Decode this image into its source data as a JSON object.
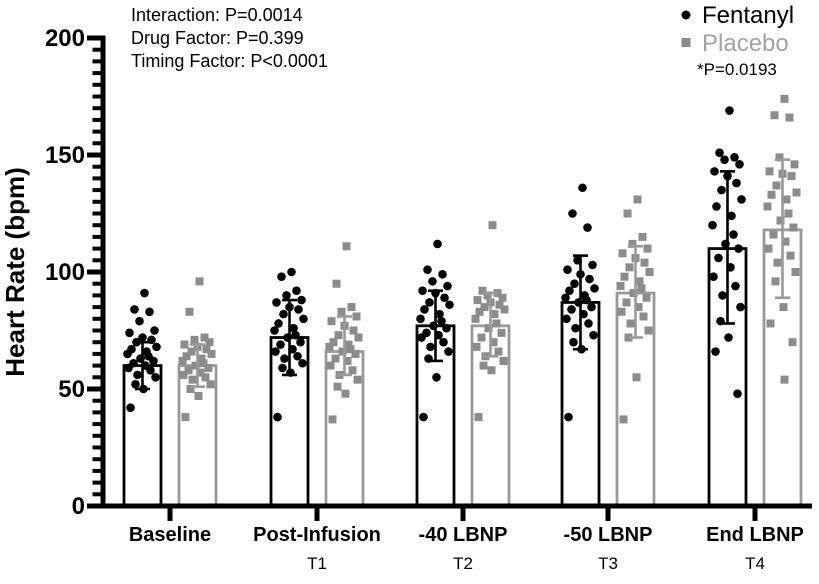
{
  "chart_data": {
    "type": "bar",
    "subtype": "grouped-bars-with-scatter-overlay-and-sd-error-bars",
    "title": "",
    "xlabel": "",
    "ylabel": "Heart Rate (bpm)",
    "ylim": [
      0,
      200
    ],
    "yticks": [
      0,
      50,
      100,
      150,
      200
    ],
    "ytick_minor_step": 5,
    "grid": false,
    "legend_position": "top-right",
    "categories": [
      "Baseline",
      "Post-Infusion",
      "-40 LBNP",
      "-50 LBNP",
      "End LBNP"
    ],
    "timing_labels": [
      "",
      "T1",
      "T2",
      "T3",
      "T4"
    ],
    "stats_annotations": [
      "Interaction: P=0.0014",
      "Drug Factor: P=0.399",
      "Timing Factor: P<0.0001"
    ],
    "significance_note": "*P=0.0193",
    "colors": {
      "fentanyl": "#000000",
      "placebo_marker": "#8c8c8c",
      "placebo_line": "#9a9a9a",
      "placebo_text": "#a3a3a3",
      "background": "#ffffff"
    },
    "legend": [
      {
        "name": "Fentanyl",
        "marker": "circle",
        "color": "#000000"
      },
      {
        "name": "Placebo",
        "marker": "square",
        "color": "#8c8c8c"
      }
    ],
    "series": [
      {
        "name": "Fentanyl",
        "marker": "circle",
        "color": "#000000",
        "line_color": "#000000",
        "bar_means": [
          60,
          72,
          77,
          87,
          110
        ],
        "sd_high": [
          70,
          88,
          92,
          107,
          143
        ],
        "sd_low": [
          50,
          56,
          62,
          67,
          78
        ],
        "points": [
          [
            91,
            84,
            83,
            79,
            75,
            74,
            72,
            71,
            70,
            68,
            67,
            66,
            65,
            64,
            63,
            62,
            61,
            60,
            59,
            58,
            56,
            55,
            52,
            50,
            42
          ],
          [
            100,
            98,
            92,
            90,
            88,
            87,
            85,
            84,
            82,
            80,
            78,
            76,
            75,
            73,
            72,
            70,
            69,
            67,
            66,
            64,
            63,
            61,
            59,
            57,
            38
          ],
          [
            112,
            101,
            99,
            96,
            94,
            92,
            91,
            89,
            87,
            86,
            84,
            82,
            80,
            79,
            77,
            76,
            74,
            73,
            72,
            70,
            68,
            66,
            63,
            55,
            38
          ],
          [
            136,
            125,
            119,
            105,
            103,
            101,
            99,
            97,
            95,
            93,
            92,
            90,
            89,
            88,
            87,
            85,
            84,
            82,
            80,
            78,
            76,
            73,
            70,
            67,
            38
          ],
          [
            169,
            151,
            149,
            148,
            146,
            143,
            141,
            138,
            135,
            131,
            128,
            124,
            120,
            116,
            112,
            110,
            106,
            102,
            98,
            94,
            90,
            85,
            79,
            72,
            66,
            48
          ]
        ]
      },
      {
        "name": "Placebo",
        "marker": "square",
        "color": "#8c8c8c",
        "line_color": "#9a9a9a",
        "bar_means": [
          60,
          66,
          77,
          91,
          118
        ],
        "sd_high": [
          69,
          81,
          91,
          111,
          148
        ],
        "sd_low": [
          51,
          56,
          64,
          72,
          89
        ],
        "points": [
          [
            96,
            83,
            72,
            71,
            70,
            69,
            68,
            67,
            66,
            65,
            64,
            63,
            62,
            61,
            60,
            59,
            58,
            57,
            56,
            55,
            54,
            52,
            50,
            47,
            38
          ],
          [
            111,
            95,
            85,
            83,
            81,
            79,
            77,
            75,
            73,
            72,
            70,
            69,
            68,
            67,
            66,
            65,
            63,
            62,
            60,
            58,
            56,
            54,
            51,
            48,
            37
          ],
          [
            120,
            92,
            91,
            90,
            89,
            88,
            87,
            86,
            85,
            84,
            83,
            82,
            80,
            78,
            76,
            74,
            72,
            70,
            68,
            66,
            64,
            62,
            60,
            58,
            38
          ],
          [
            131,
            125,
            115,
            112,
            110,
            108,
            106,
            104,
            102,
            100,
            98,
            96,
            94,
            93,
            91,
            89,
            87,
            85,
            83,
            81,
            78,
            75,
            72,
            55,
            37
          ],
          [
            174,
            167,
            166,
            149,
            146,
            143,
            142,
            141,
            137,
            134,
            133,
            131,
            128,
            125,
            122,
            119,
            116,
            113,
            110,
            107,
            104,
            100,
            96,
            85,
            78,
            70,
            54
          ]
        ]
      }
    ]
  }
}
